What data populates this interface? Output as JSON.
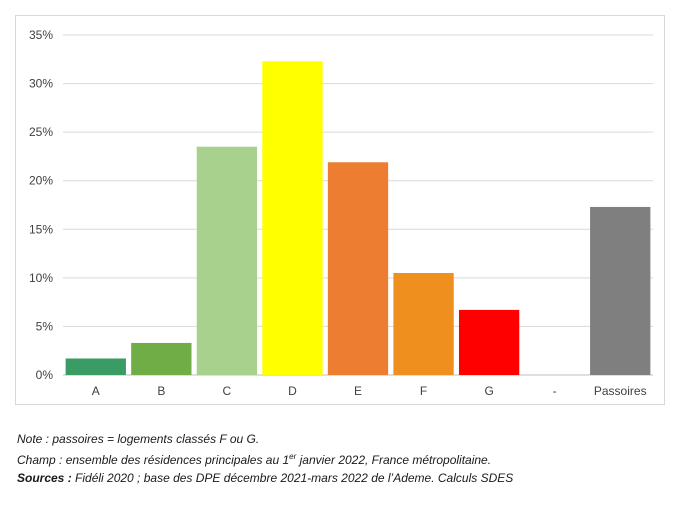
{
  "chart_data": {
    "type": "bar",
    "categories": [
      "A",
      "B",
      "C",
      "D",
      "E",
      "F",
      "G",
      "-",
      "Passoires"
    ],
    "values": [
      1.7,
      3.3,
      23.5,
      32.3,
      21.9,
      10.5,
      6.7,
      null,
      17.3
    ],
    "colors": [
      "#3a9b64",
      "#70ad47",
      "#a9d18e",
      "#ffff00",
      "#ed7d31",
      "#ef8f1d",
      "#ff0000",
      null,
      "#7f7f7f"
    ],
    "ylim": [
      0,
      35
    ],
    "yticks": [
      0,
      5,
      10,
      15,
      20,
      25,
      30,
      35
    ],
    "ytick_labels": [
      "0%",
      "5%",
      "10%",
      "15%",
      "20%",
      "25%",
      "30%",
      "35%"
    ],
    "grid": true,
    "title": "",
    "xlabel": "",
    "ylabel": ""
  },
  "notes": {
    "note_label": "Note :",
    "note_text": " passoires = logements classés F ou G.",
    "champ_label": "Champ :",
    "champ_text_before": " ensemble des résidences principales au 1",
    "champ_sup": "er",
    "champ_text_after": " janvier 2022, France métropolitaine.",
    "sources_label": "Sources :",
    "sources_text": " Fidéli 2020 ; base des DPE décembre 2021-mars 2022 de l’Ademe. Calculs SDES"
  }
}
